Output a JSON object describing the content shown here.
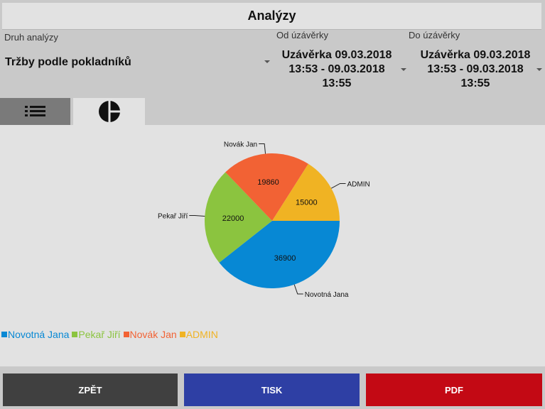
{
  "header": {
    "title": "Analýzy"
  },
  "filters": {
    "type_label": "Druh analýzy",
    "type_value": "Tržby podle pokladníků",
    "from_label": "Od úzávěrky",
    "from_value": "Uzávěrka 09.03.2018 13:53 - 09.03.2018 13:55",
    "to_label": "Do úzávěrky",
    "to_value": "Uzávěrka 09.03.2018 13:53 - 09.03.2018 13:55"
  },
  "tabs": [
    {
      "name": "list",
      "icon": "list-icon",
      "active": false
    },
    {
      "name": "chart",
      "icon": "pie-chart-icon",
      "active": true
    }
  ],
  "chart_data": {
    "type": "pie",
    "categories": [
      "Novotná Jana",
      "Pekař Jiří",
      "Novák Jan",
      "ADMIN"
    ],
    "values": [
      36900,
      22000,
      19860,
      15000
    ],
    "value_labels": [
      "36900",
      "22000",
      "19860",
      "15000"
    ],
    "colors": [
      "#0788d4",
      "#8bc43f",
      "#f26234",
      "#f0b323"
    ],
    "legend_position": "bottom-left"
  },
  "buttons": {
    "back": {
      "label": "ZPĚT",
      "color": "#404040"
    },
    "print": {
      "label": "TISK",
      "color": "#2e3fa4"
    },
    "pdf": {
      "label": "PDF",
      "color": "#c30914"
    }
  }
}
